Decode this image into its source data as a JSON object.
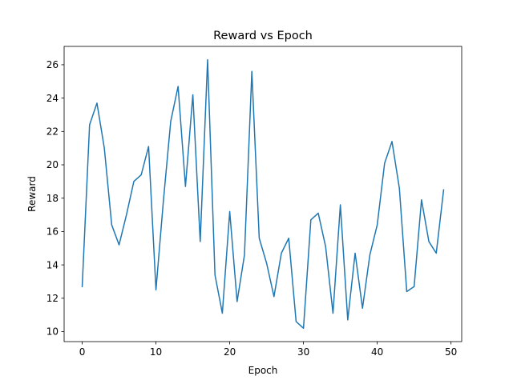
{
  "chart_data": {
    "type": "line",
    "title": "Reward vs Epoch",
    "xlabel": "Epoch",
    "ylabel": "Reward",
    "xlim": [
      -2.45,
      51.45
    ],
    "ylim": [
      9.4,
      27.1
    ],
    "xticks": [
      0,
      10,
      20,
      30,
      40,
      50
    ],
    "yticks": [
      10,
      12,
      14,
      16,
      18,
      20,
      22,
      24,
      26
    ],
    "grid": false,
    "line_color": "#1f77b4",
    "x": [
      0,
      1,
      2,
      3,
      4,
      5,
      6,
      7,
      8,
      9,
      10,
      11,
      12,
      13,
      14,
      15,
      16,
      17,
      18,
      19,
      20,
      21,
      22,
      23,
      24,
      25,
      26,
      27,
      28,
      29,
      30,
      31,
      32,
      33,
      34,
      35,
      36,
      37,
      38,
      39,
      40,
      41,
      42,
      43,
      44,
      45,
      46,
      47,
      48,
      49
    ],
    "series": [
      {
        "values": [
          12.7,
          22.4,
          23.7,
          21.0,
          16.4,
          15.2,
          17.0,
          19.0,
          19.4,
          21.1,
          12.5,
          17.8,
          22.6,
          24.7,
          18.7,
          24.2,
          15.4,
          26.3,
          13.4,
          11.1,
          17.2,
          11.8,
          14.6,
          25.6,
          15.6,
          14.1,
          12.1,
          14.7,
          15.6,
          10.6,
          10.2,
          16.7,
          17.1,
          15.1,
          11.1,
          17.6,
          10.7,
          14.7,
          11.4,
          14.6,
          16.4,
          20.1,
          21.4,
          18.6,
          12.4,
          12.7,
          17.9,
          15.4,
          14.7,
          18.5
        ]
      }
    ]
  }
}
